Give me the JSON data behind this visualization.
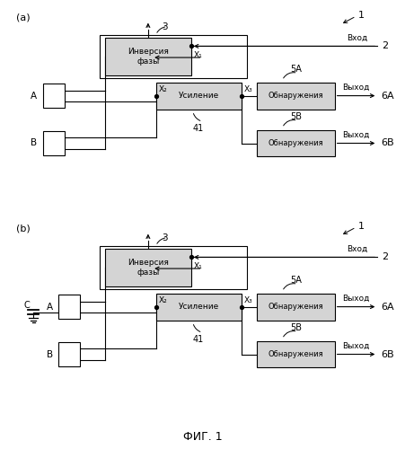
{
  "bg_color": "#ffffff",
  "line_color": "#000000",
  "box_fill": "#d4d4d4",
  "box_fill_white": "#ffffff",
  "fig_label": "ФИГ. 1",
  "text_phase": "Инверсия\nфазы",
  "text_amp": "Усиление",
  "text_detect": "Обнаружения",
  "text_vhod": "Вход",
  "text_vyhod": "Выход",
  "x1_label": "X₁",
  "x2_label": "X₂",
  "x3_label": "X₃",
  "label_1": "1",
  "label_2": "2",
  "label_3": "3",
  "label_41": "41",
  "label_5A": "5A",
  "label_5B": "5B",
  "label_6A": "6A",
  "label_6B": "6B",
  "label_A": "A",
  "label_B": "B",
  "label_C": "C"
}
